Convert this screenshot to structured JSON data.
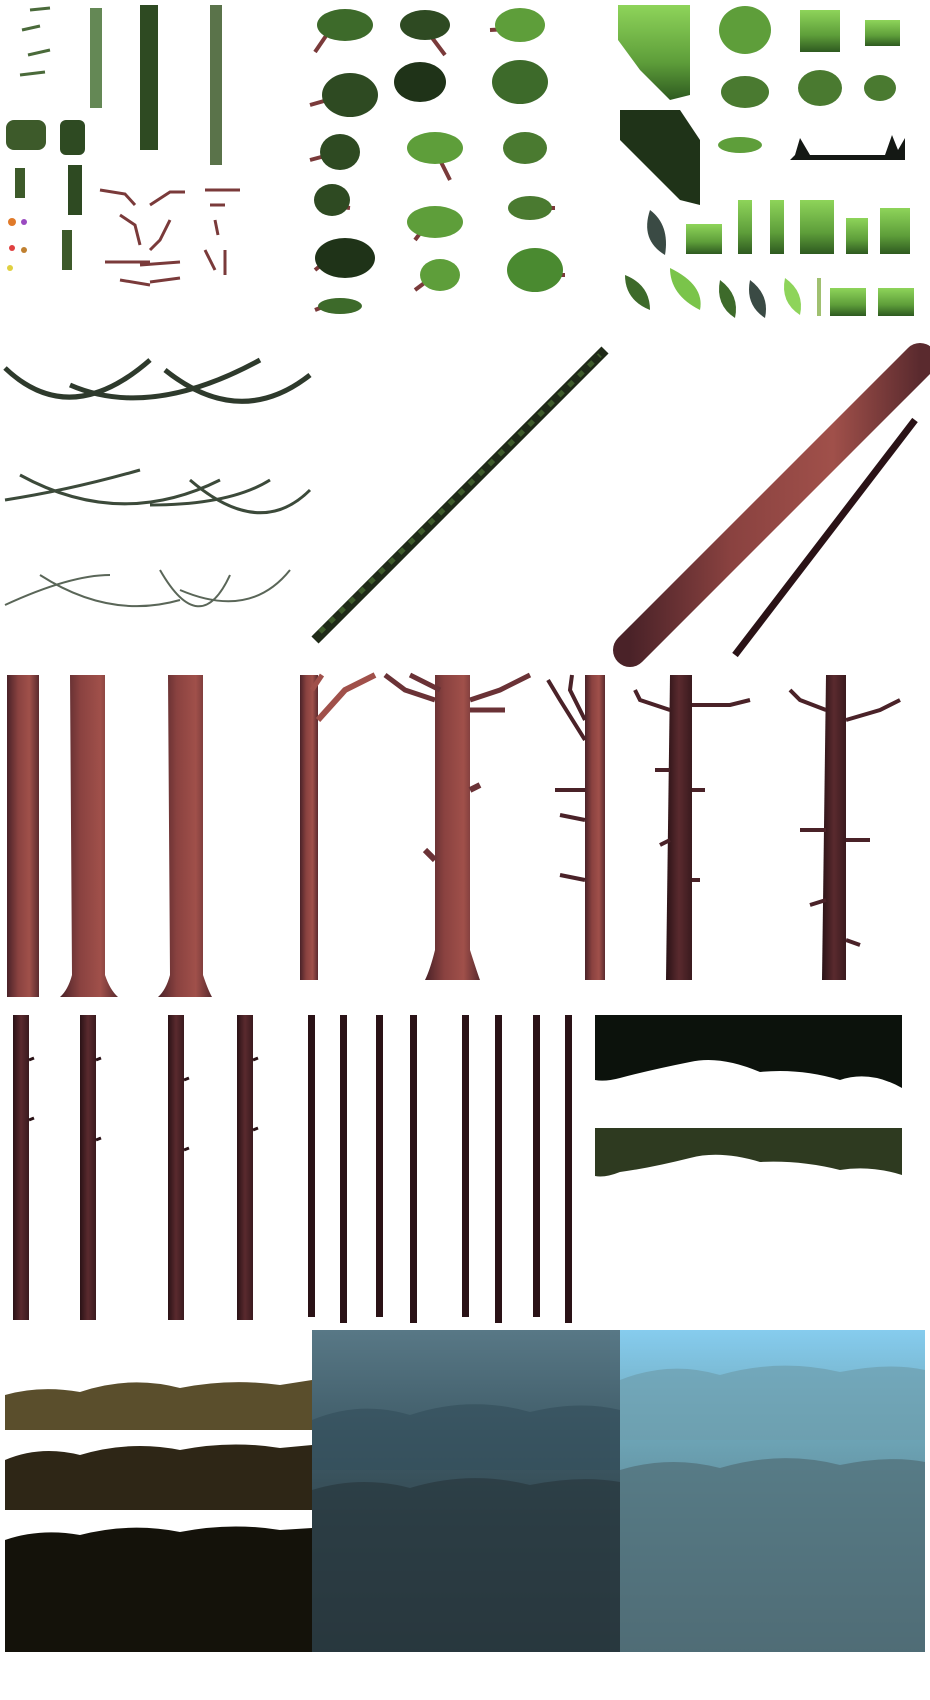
{
  "sheet": {
    "background": "#ffffff"
  },
  "palette": {
    "vine_dark": "#2e3a2c",
    "vine_mid": "#3c4a3a",
    "vine_light": "#5a6658",
    "moss_dark": "#1f3318",
    "moss_mid": "#3d6a2a",
    "moss_light": "#7ab04a",
    "leaf_bright": "#8ed45a",
    "branch_red": "#7a3a3a",
    "trunk_light": "#a0504a",
    "trunk_mid": "#7a3838",
    "trunk_dark": "#4a2228",
    "trunk_shadow": "#2a1216",
    "hedge_black": "#0c120c",
    "hedge_green": "#2e3a20",
    "ground_olive": "#5a4e2c",
    "ground_brown": "#2e2616",
    "ground_black": "#14120a",
    "sky_dark_top": "#5a7a86",
    "sky_dark_mid": "#3e5a66",
    "sky_dark_low": "#2a3a40",
    "sky_light_top": "#86ccee",
    "sky_light_mid": "#6fa8ba",
    "sky_light_low": "#4e6a74"
  },
  "sprite_groups": [
    {
      "id": "hanging-vines",
      "icon": "vine-icon"
    },
    {
      "id": "bush-clusters",
      "icon": "bush-icon"
    },
    {
      "id": "grass-tiles-and-leaves",
      "icon": "leaf-icon"
    },
    {
      "id": "curved-vine-ropes",
      "icon": "rope-icon"
    },
    {
      "id": "mossy-diagonal-branch",
      "icon": "branch-icon"
    },
    {
      "id": "diagonal-log",
      "icon": "log-icon"
    },
    {
      "id": "wide-trunks",
      "icon": "trunk-icon"
    },
    {
      "id": "branching-trunks",
      "icon": "tree-icon"
    },
    {
      "id": "thin-trunks",
      "icon": "trunk-icon"
    },
    {
      "id": "pole-sticks",
      "icon": "pole-icon"
    },
    {
      "id": "hedge-strips",
      "icon": "hedge-icon"
    },
    {
      "id": "ground-layers",
      "icon": "ground-icon"
    },
    {
      "id": "sky-dark-background",
      "icon": "sky-icon"
    },
    {
      "id": "sky-light-background",
      "icon": "sky-icon"
    }
  ]
}
